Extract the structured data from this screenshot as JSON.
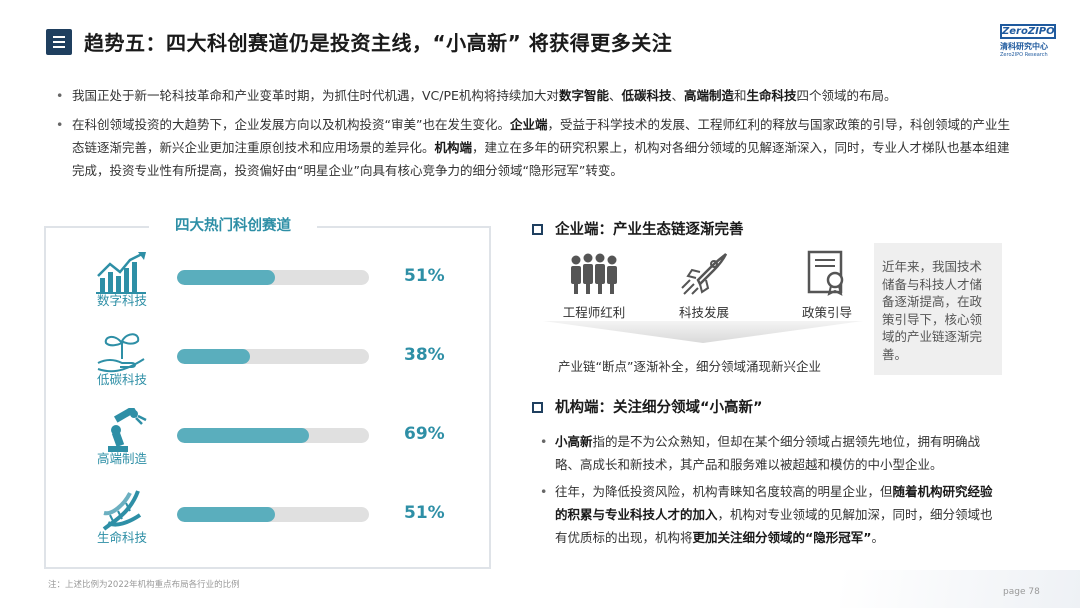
{
  "header": {
    "title": "趋势五：四大科创赛道仍是投资主线，“小高新” 将获得更多关注",
    "logo_text": "ZeroZIPO",
    "logo_cn": "清科研究中心",
    "logo_en": "Zero2IPO Research"
  },
  "bullets": [
    {
      "segments": [
        {
          "text": "我国正处于新一轮科技革命和产业变革时期，为抓住时代机遇，VC/PE机构将持续加大对",
          "bold": false
        },
        {
          "text": "数字智能",
          "bold": true
        },
        {
          "text": "、",
          "bold": false
        },
        {
          "text": "低碳科技",
          "bold": true
        },
        {
          "text": "、",
          "bold": false
        },
        {
          "text": "高端制造",
          "bold": true
        },
        {
          "text": "和",
          "bold": false
        },
        {
          "text": "生命科技",
          "bold": true
        },
        {
          "text": "四个领域的布局。",
          "bold": false
        }
      ]
    },
    {
      "segments": [
        {
          "text": "在科创领域投资的大趋势下，企业发展方向以及机构投资“审美”也在发生变化。",
          "bold": false
        },
        {
          "text": "企业端",
          "bold": true
        },
        {
          "text": "，受益于科学技术的发展、工程师红利的释放与国家政策的引导，科创领域的产业生态链逐渐完善，新兴企业更加注重原创技术和应用场景的差异化。",
          "bold": false
        },
        {
          "text": "机构端",
          "bold": true
        },
        {
          "text": "，建立在多年的研究积累上，机构对各细分领域的见解逐渐深入，同时，专业人才梯队也基本组建完成，投资专业性有所提高，投资偏好由“明星企业”向具有核心竞争力的细分领域“隐形冠军”转变。",
          "bold": false
        }
      ]
    }
  ],
  "left_panel": {
    "title": "四大热门科创赛道",
    "rows": [
      {
        "label": "数字科技",
        "icon": "chart-growth-icon",
        "value": 51,
        "value_text": "51%"
      },
      {
        "label": "低碳科技",
        "icon": "plant-hand-icon",
        "value": 38,
        "value_text": "38%"
      },
      {
        "label": "高端制造",
        "icon": "robot-arm-icon",
        "value": 69,
        "value_text": "69%"
      },
      {
        "label": "生命科技",
        "icon": "dna-icon",
        "value": 51,
        "value_text": "51%"
      }
    ]
  },
  "enterprise": {
    "heading": "企业端：产业生态链逐渐完善",
    "items": [
      {
        "label": "工程师红利",
        "icon": "engineers-group-icon"
      },
      {
        "label": "科技发展",
        "icon": "rocket-icon"
      },
      {
        "label": "政策引导",
        "icon": "policy-document-icon"
      }
    ],
    "chain_text": "产业链“断点”逐渐补全，细分领域涌现新兴企业",
    "side_text": "近年来，我国技术储备与科技人才储备逐渐提高，在政策引导下，核心领域的产业链逐渐完善。"
  },
  "institution": {
    "heading": "机构端：关注细分领域“小高新”",
    "bullets": [
      {
        "segments": [
          {
            "text": "小高新",
            "bold": true
          },
          {
            "text": "指的是不为公众熟知，但却在某个细分领域占据领先地位，拥有明确战略、高成长和新技术，其产品和服务难以被超越和模仿的中小型企业。",
            "bold": false
          }
        ]
      },
      {
        "segments": [
          {
            "text": "往年，为降低投资风险，机构青睐知名度较高的明星企业，但",
            "bold": false
          },
          {
            "text": "随着机构研究经验的积累与专业科技人才的加入",
            "bold": true
          },
          {
            "text": "，机构对专业领域的见解加深，同时，细分领域也有优质标的出现，机构将",
            "bold": false
          },
          {
            "text": "更加关注细分领域的“隐形冠军”",
            "bold": true
          },
          {
            "text": "。",
            "bold": false
          }
        ]
      }
    ]
  },
  "footer": {
    "note": "注：上述比例为2022年机构重点布局各行业的比例",
    "page": "page  78"
  },
  "colors": {
    "accent": "#2e8fa6",
    "bar_fill": "#5aaebd",
    "bar_track": "#e0e0e0",
    "title_icon": "#1f3f5f"
  }
}
